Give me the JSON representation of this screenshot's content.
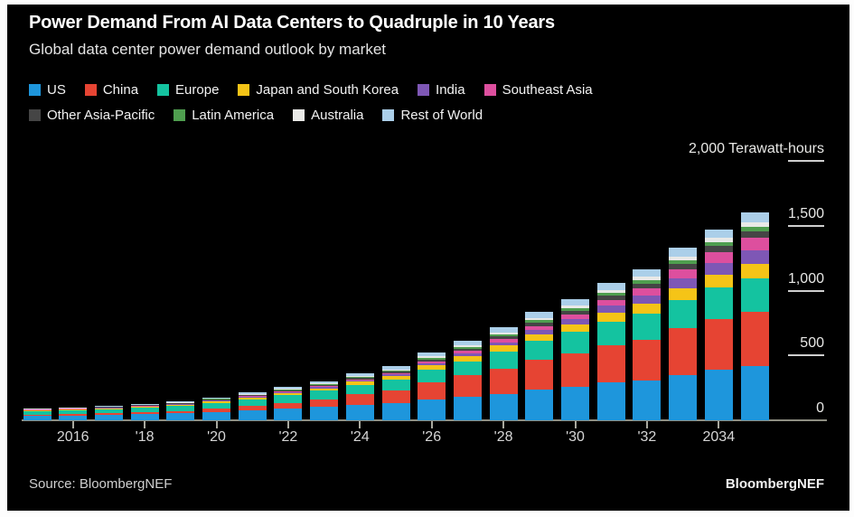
{
  "footer": {
    "source": "Source: BloombergNEF",
    "brand": "BloombergNEF"
  },
  "colors": {
    "page_background": "#fdfdfd",
    "chart_background": "#000000",
    "title_text": "#ffffff",
    "subtitle_text": "#e3e3e3",
    "axis_text": "#e8e8e6",
    "baseline": "#8e8e82",
    "tick_dash": "#cfcfcf"
  },
  "chart_data": {
    "type": "bar",
    "stacked": true,
    "title": "Power Demand From AI Data Centers to Quadruple in 10 Years",
    "subtitle": "Global data center power demand outlook by market",
    "ylabel": "Terawatt-hours",
    "ylim": [
      0,
      2000
    ],
    "grid": false,
    "legend_position": "top",
    "yticks": [
      {
        "label": "0",
        "value": 0,
        "dash": false
      },
      {
        "label": "500",
        "value": 500,
        "dash": true
      },
      {
        "label": "1,000",
        "value": 1000,
        "dash": true
      },
      {
        "label": "1,500",
        "value": 1500,
        "dash": true
      },
      {
        "label": "2,000 Terawatt-hours",
        "value": 2000,
        "dash": true
      }
    ],
    "xticks": [
      {
        "label": "2016",
        "year": 2016
      },
      {
        "label": "'18",
        "year": 2018
      },
      {
        "label": "'20",
        "year": 2020
      },
      {
        "label": "'22",
        "year": 2022
      },
      {
        "label": "'24",
        "year": 2024
      },
      {
        "label": "'26",
        "year": 2026
      },
      {
        "label": "'28",
        "year": 2028
      },
      {
        "label": "'30",
        "year": 2030
      },
      {
        "label": "'32",
        "year": 2032
      },
      {
        "label": "2034",
        "year": 2034
      }
    ],
    "years": [
      2015,
      2016,
      2017,
      2018,
      2019,
      2020,
      2021,
      2022,
      2023,
      2024,
      2025,
      2026,
      2027,
      2028,
      2029,
      2030,
      2031,
      2032,
      2033,
      2034,
      2035
    ],
    "series": [
      {
        "name": "US",
        "key": "us",
        "color": "#1e96dc",
        "values": [
          35,
          38,
          42,
          47,
          55,
          66,
          80,
          94,
          108,
          122,
          130,
          160,
          180,
          205,
          235,
          260,
          292,
          308,
          352,
          390,
          420
        ]
      },
      {
        "name": "China",
        "key": "china",
        "color": "#e64433",
        "values": [
          8,
          9,
          11,
          13,
          16,
          22,
          30,
          40,
          54,
          78,
          102,
          134,
          166,
          195,
          230,
          255,
          290,
          312,
          356,
          392,
          415
        ]
      },
      {
        "name": "Europe",
        "key": "europe",
        "color": "#14c3a0",
        "values": [
          28,
          30,
          33,
          36,
          40,
          46,
          52,
          58,
          65,
          74,
          82,
          97,
          110,
          130,
          145,
          165,
          180,
          200,
          222,
          240,
          260
        ]
      },
      {
        "name": "Japan and South Korea",
        "key": "japan-south-korea",
        "color": "#f5c417",
        "values": [
          6,
          7,
          8,
          9,
          10,
          12,
          14,
          16,
          19,
          23,
          28,
          34,
          40,
          47,
          55,
          62,
          70,
          80,
          90,
          100,
          110
        ]
      },
      {
        "name": "India",
        "key": "india",
        "color": "#7e57b5",
        "values": [
          2,
          2,
          3,
          3,
          4,
          5,
          6,
          8,
          10,
          11,
          12,
          16,
          20,
          26,
          33,
          40,
          50,
          61,
          75,
          90,
          105
        ]
      },
      {
        "name": "Southeast Asia",
        "key": "southeast-asia",
        "color": "#dd4f9e",
        "values": [
          2,
          2,
          2,
          3,
          3,
          4,
          5,
          6,
          8,
          9,
          10,
          14,
          18,
          23,
          30,
          36,
          45,
          55,
          68,
          82,
          95
        ]
      },
      {
        "name": "Other Asia-Pacific",
        "key": "other-asia-pacific",
        "color": "#454545",
        "values": [
          4,
          4,
          4,
          5,
          5,
          6,
          7,
          8,
          9,
          11,
          12,
          15,
          18,
          21,
          25,
          28,
          32,
          38,
          44,
          50,
          55
        ]
      },
      {
        "name": "Latin America",
        "key": "latin-america",
        "color": "#4f9e4f",
        "values": [
          2,
          2,
          2,
          3,
          3,
          4,
          5,
          6,
          7,
          9,
          10,
          12,
          14,
          17,
          20,
          22,
          25,
          28,
          30,
          32,
          35
        ]
      },
      {
        "name": "Australia",
        "key": "australia",
        "color": "#e9e9e7",
        "values": [
          2,
          2,
          2,
          2,
          3,
          3,
          4,
          5,
          6,
          7,
          8,
          10,
          12,
          14,
          17,
          19,
          22,
          25,
          28,
          31,
          35
        ]
      },
      {
        "name": "Rest of World",
        "key": "rest-of-world",
        "color": "#abcfe9",
        "values": [
          3,
          4,
          5,
          6,
          7,
          9,
          11,
          14,
          17,
          20,
          24,
          28,
          33,
          38,
          44,
          50,
          55,
          60,
          64,
          67,
          70
        ]
      }
    ]
  }
}
